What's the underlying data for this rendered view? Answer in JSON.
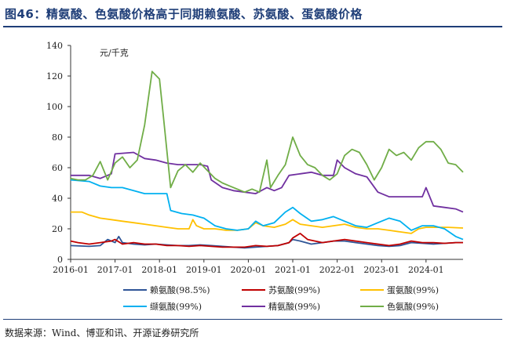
{
  "figure": {
    "title": "图46：精氨酸、色氨酸价格高于同期赖氨酸、苏氨酸、蛋氨酸价格",
    "source": "数据来源：Wind、博亚和讯、开源证券研究所"
  },
  "chart_data": {
    "type": "line",
    "unit_label": "元/千克",
    "ylim": [
      0,
      140
    ],
    "yticks": [
      0,
      20,
      40,
      60,
      80,
      100,
      120,
      140
    ],
    "xlim": [
      "2016-01",
      "2024-11"
    ],
    "xticks": [
      "2016-01",
      "2017-01",
      "2018-01",
      "2019-01",
      "2020-01",
      "2021-01",
      "2022-01",
      "2023-01",
      "2024-01"
    ],
    "grid": false,
    "legend_position": "bottom",
    "series": [
      {
        "name": "赖氨酸(98.5%)",
        "color": "#2f5597",
        "points": [
          [
            "2016-01",
            9
          ],
          [
            "2016-06",
            8.5
          ],
          [
            "2016-09",
            9
          ],
          [
            "2016-11",
            13
          ],
          [
            "2017-01",
            11
          ],
          [
            "2017-02",
            15
          ],
          [
            "2017-03",
            11
          ],
          [
            "2017-06",
            10
          ],
          [
            "2017-09",
            9.5
          ],
          [
            "2017-12",
            10
          ],
          [
            "2018-03",
            9.5
          ],
          [
            "2018-06",
            9
          ],
          [
            "2018-09",
            9
          ],
          [
            "2018-12",
            9.5
          ],
          [
            "2019-03",
            9
          ],
          [
            "2019-06",
            8.5
          ],
          [
            "2019-09",
            8
          ],
          [
            "2019-12",
            7.5
          ],
          [
            "2020-03",
            8
          ],
          [
            "2020-06",
            8.5
          ],
          [
            "2020-09",
            9
          ],
          [
            "2020-12",
            11
          ],
          [
            "2021-01",
            13
          ],
          [
            "2021-03",
            12
          ],
          [
            "2021-06",
            10
          ],
          [
            "2021-09",
            11
          ],
          [
            "2021-12",
            12
          ],
          [
            "2022-03",
            12
          ],
          [
            "2022-06",
            11
          ],
          [
            "2022-09",
            10
          ],
          [
            "2022-12",
            9
          ],
          [
            "2023-03",
            8.5
          ],
          [
            "2023-06",
            9
          ],
          [
            "2023-09",
            11
          ],
          [
            "2023-12",
            10.5
          ],
          [
            "2024-03",
            10
          ],
          [
            "2024-06",
            10.5
          ],
          [
            "2024-09",
            11
          ],
          [
            "2024-11",
            11
          ]
        ]
      },
      {
        "name": "苏氨酸(99%)",
        "color": "#c00000",
        "points": [
          [
            "2016-01",
            12
          ],
          [
            "2016-03",
            11
          ],
          [
            "2016-06",
            10
          ],
          [
            "2016-09",
            11
          ],
          [
            "2016-12",
            12
          ],
          [
            "2017-01",
            13
          ],
          [
            "2017-03",
            10
          ],
          [
            "2017-06",
            11
          ],
          [
            "2017-09",
            10
          ],
          [
            "2017-12",
            10
          ],
          [
            "2018-03",
            9
          ],
          [
            "2018-06",
            9
          ],
          [
            "2018-09",
            8.5
          ],
          [
            "2018-12",
            9
          ],
          [
            "2019-03",
            8.5
          ],
          [
            "2019-06",
            8
          ],
          [
            "2019-09",
            8
          ],
          [
            "2019-12",
            8
          ],
          [
            "2020-03",
            9
          ],
          [
            "2020-06",
            8.5
          ],
          [
            "2020-09",
            9
          ],
          [
            "2020-12",
            11
          ],
          [
            "2021-01",
            14
          ],
          [
            "2021-03",
            17
          ],
          [
            "2021-05",
            13
          ],
          [
            "2021-09",
            11
          ],
          [
            "2021-12",
            12
          ],
          [
            "2022-03",
            13
          ],
          [
            "2022-06",
            12
          ],
          [
            "2022-09",
            11
          ],
          [
            "2022-12",
            10
          ],
          [
            "2023-03",
            9
          ],
          [
            "2023-06",
            10
          ],
          [
            "2023-09",
            12
          ],
          [
            "2023-12",
            11
          ],
          [
            "2024-03",
            11
          ],
          [
            "2024-06",
            10.5
          ],
          [
            "2024-09",
            11
          ],
          [
            "2024-11",
            11
          ]
        ]
      },
      {
        "name": "蛋氨酸(99%)",
        "color": "#ffc000",
        "points": [
          [
            "2016-01",
            31
          ],
          [
            "2016-04",
            31
          ],
          [
            "2016-06",
            29
          ],
          [
            "2016-09",
            27
          ],
          [
            "2016-12",
            26
          ],
          [
            "2017-03",
            25
          ],
          [
            "2017-06",
            24
          ],
          [
            "2017-09",
            23
          ],
          [
            "2017-12",
            22
          ],
          [
            "2018-03",
            21
          ],
          [
            "2018-06",
            20
          ],
          [
            "2018-09",
            20
          ],
          [
            "2018-10",
            26
          ],
          [
            "2018-11",
            22
          ],
          [
            "2019-01",
            20
          ],
          [
            "2019-04",
            20
          ],
          [
            "2019-07",
            19
          ],
          [
            "2019-10",
            19
          ],
          [
            "2020-01",
            20
          ],
          [
            "2020-03",
            24
          ],
          [
            "2020-05",
            22
          ],
          [
            "2020-08",
            21
          ],
          [
            "2020-11",
            23
          ],
          [
            "2021-01",
            26
          ],
          [
            "2021-03",
            23
          ],
          [
            "2021-06",
            22
          ],
          [
            "2021-09",
            21
          ],
          [
            "2021-12",
            22
          ],
          [
            "2022-03",
            23
          ],
          [
            "2022-06",
            21
          ],
          [
            "2022-09",
            20
          ],
          [
            "2022-12",
            20
          ],
          [
            "2023-03",
            19
          ],
          [
            "2023-06",
            18
          ],
          [
            "2023-09",
            17
          ],
          [
            "2023-11",
            20
          ],
          [
            "2024-01",
            21
          ],
          [
            "2024-04",
            21
          ],
          [
            "2024-07",
            21
          ],
          [
            "2024-11",
            20.5
          ]
        ]
      },
      {
        "name": "缬氨酸(99%)",
        "color": "#00b0f0",
        "points": [
          [
            "2016-01",
            52
          ],
          [
            "2016-06",
            51
          ],
          [
            "2016-09",
            48
          ],
          [
            "2016-12",
            47
          ],
          [
            "2017-03",
            47
          ],
          [
            "2017-06",
            45
          ],
          [
            "2017-09",
            43
          ],
          [
            "2017-12",
            43
          ],
          [
            "2018-03",
            43
          ],
          [
            "2018-04",
            32
          ],
          [
            "2018-07",
            30
          ],
          [
            "2018-10",
            29
          ],
          [
            "2019-01",
            27
          ],
          [
            "2019-04",
            22
          ],
          [
            "2019-07",
            20
          ],
          [
            "2019-10",
            19
          ],
          [
            "2020-01",
            20
          ],
          [
            "2020-03",
            25
          ],
          [
            "2020-05",
            22
          ],
          [
            "2020-08",
            24
          ],
          [
            "2020-11",
            31
          ],
          [
            "2021-01",
            34
          ],
          [
            "2021-03",
            30
          ],
          [
            "2021-06",
            25
          ],
          [
            "2021-09",
            26
          ],
          [
            "2021-12",
            28
          ],
          [
            "2022-03",
            25
          ],
          [
            "2022-06",
            22
          ],
          [
            "2022-09",
            21
          ],
          [
            "2022-12",
            24
          ],
          [
            "2023-03",
            27
          ],
          [
            "2023-06",
            25
          ],
          [
            "2023-09",
            19
          ],
          [
            "2023-12",
            22
          ],
          [
            "2024-03",
            22
          ],
          [
            "2024-06",
            20
          ],
          [
            "2024-09",
            15
          ],
          [
            "2024-11",
            13
          ]
        ]
      },
      {
        "name": "精氨酸(99%)",
        "color": "#7030a0",
        "points": [
          [
            "2016-01",
            55
          ],
          [
            "2016-06",
            55
          ],
          [
            "2016-09",
            53
          ],
          [
            "2016-12",
            56
          ],
          [
            "2017-01",
            69
          ],
          [
            "2017-06",
            70
          ],
          [
            "2017-09",
            66
          ],
          [
            "2017-12",
            65
          ],
          [
            "2018-03",
            63
          ],
          [
            "2018-06",
            62
          ],
          [
            "2018-09",
            62
          ],
          [
            "2018-12",
            62
          ],
          [
            "2019-02",
            61
          ],
          [
            "2019-03",
            52
          ],
          [
            "2019-06",
            47
          ],
          [
            "2019-09",
            45
          ],
          [
            "2019-12",
            44
          ],
          [
            "2020-03",
            43
          ],
          [
            "2020-06",
            47
          ],
          [
            "2020-08",
            45
          ],
          [
            "2020-10",
            47
          ],
          [
            "2020-12",
            55
          ],
          [
            "2021-03",
            56
          ],
          [
            "2021-06",
            57
          ],
          [
            "2021-09",
            55
          ],
          [
            "2021-12",
            55
          ],
          [
            "2022-01",
            65
          ],
          [
            "2022-03",
            60
          ],
          [
            "2022-06",
            56
          ],
          [
            "2022-09",
            54
          ],
          [
            "2022-12",
            44
          ],
          [
            "2023-03",
            41
          ],
          [
            "2023-06",
            41
          ],
          [
            "2023-09",
            41
          ],
          [
            "2023-12",
            41
          ],
          [
            "2024-01",
            47
          ],
          [
            "2024-03",
            35
          ],
          [
            "2024-06",
            34
          ],
          [
            "2024-09",
            33
          ],
          [
            "2024-11",
            31
          ]
        ]
      },
      {
        "name": "色氨酸(99%)",
        "color": "#70ad47",
        "points": [
          [
            "2016-01",
            53
          ],
          [
            "2016-03",
            52
          ],
          [
            "2016-05",
            52
          ],
          [
            "2016-07",
            55
          ],
          [
            "2016-09",
            64
          ],
          [
            "2016-11",
            52
          ],
          [
            "2017-01",
            63
          ],
          [
            "2017-03",
            67
          ],
          [
            "2017-05",
            60
          ],
          [
            "2017-07",
            65
          ],
          [
            "2017-09",
            88
          ],
          [
            "2017-11",
            123
          ],
          [
            "2018-01",
            118
          ],
          [
            "2018-02",
            95
          ],
          [
            "2018-04",
            47
          ],
          [
            "2018-06",
            58
          ],
          [
            "2018-08",
            62
          ],
          [
            "2018-10",
            57
          ],
          [
            "2018-12",
            63
          ],
          [
            "2019-02",
            58
          ],
          [
            "2019-04",
            53
          ],
          [
            "2019-06",
            50
          ],
          [
            "2019-08",
            48
          ],
          [
            "2019-10",
            46
          ],
          [
            "2019-12",
            44
          ],
          [
            "2020-02",
            46
          ],
          [
            "2020-04",
            44
          ],
          [
            "2020-06",
            65
          ],
          [
            "2020-07",
            47
          ],
          [
            "2020-09",
            55
          ],
          [
            "2020-11",
            62
          ],
          [
            "2021-01",
            80
          ],
          [
            "2021-03",
            68
          ],
          [
            "2021-05",
            62
          ],
          [
            "2021-07",
            60
          ],
          [
            "2021-09",
            55
          ],
          [
            "2021-11",
            52
          ],
          [
            "2022-01",
            56
          ],
          [
            "2022-03",
            68
          ],
          [
            "2022-05",
            72
          ],
          [
            "2022-07",
            70
          ],
          [
            "2022-09",
            62
          ],
          [
            "2022-11",
            52
          ],
          [
            "2023-01",
            60
          ],
          [
            "2023-03",
            72
          ],
          [
            "2023-05",
            68
          ],
          [
            "2023-07",
            70
          ],
          [
            "2023-09",
            65
          ],
          [
            "2023-11",
            73
          ],
          [
            "2024-01",
            77
          ],
          [
            "2024-03",
            77
          ],
          [
            "2024-05",
            72
          ],
          [
            "2024-07",
            63
          ],
          [
            "2024-09",
            62
          ],
          [
            "2024-11",
            57
          ]
        ]
      }
    ]
  }
}
